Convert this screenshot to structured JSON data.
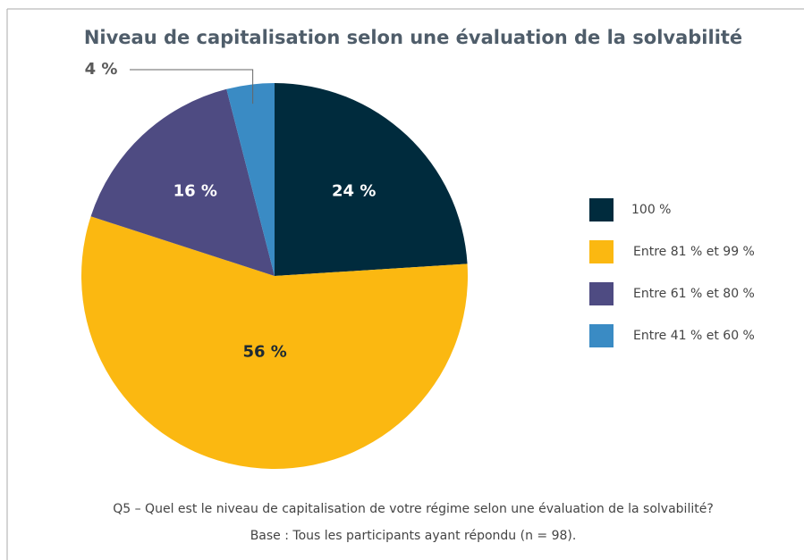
{
  "chart_data": {
    "type": "pie",
    "title": "Niveau de capitalisation selon une évaluation de la solvabilité",
    "categories": [
      "100 %",
      "Entre 81 % et 99 %",
      "Entre 61 % et 80 %",
      "Entre 41 % et 60 %"
    ],
    "values": [
      24,
      56,
      16,
      4
    ],
    "value_labels": [
      "24 %",
      "56 %",
      "16 %",
      "4 %"
    ],
    "colors": [
      "#002b3d",
      "#fbb811",
      "#4e4b82",
      "#3a8bc4"
    ],
    "legend": "right",
    "notes": [
      "Q5 – Quel est le niveau de capitalisation de votre régime selon une évaluation de la solvabilité?",
      "Base : Tous les participants ayant répondu (n = 98)."
    ]
  }
}
